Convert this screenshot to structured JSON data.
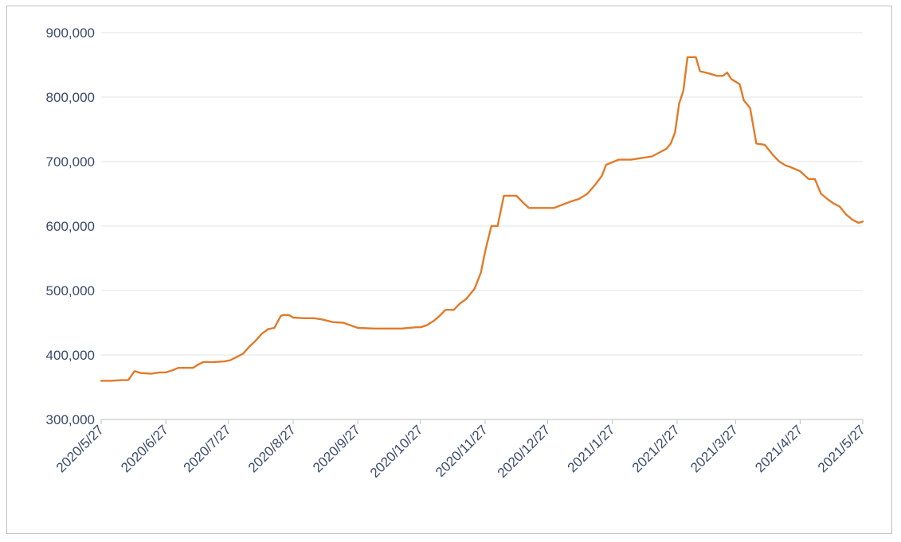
{
  "chart_data": {
    "type": "line",
    "title": "",
    "xlabel": "",
    "ylabel": "",
    "ylim": [
      300000,
      900000
    ],
    "yticks": [
      300000,
      400000,
      500000,
      600000,
      700000,
      800000,
      900000
    ],
    "ytick_labels": [
      "300,000",
      "400,000",
      "500,000",
      "600,000",
      "700,000",
      "800,000",
      "900,000"
    ],
    "x_range": [
      "2020-05-27",
      "2021-05-27"
    ],
    "xtick_labels": [
      "2020/5/27",
      "2020/6/27",
      "2020/7/27",
      "2020/8/27",
      "2020/9/27",
      "2020/10/27",
      "2020/11/27",
      "2020/12/27",
      "2021/1/27",
      "2021/2/27",
      "2021/3/27",
      "2021/4/27",
      "2021/5/27"
    ],
    "grid": true,
    "line_color": "#e07b2a",
    "series": [
      {
        "x": [
          "2020-05-27",
          "2020-06-01",
          "2020-06-06",
          "2020-06-09",
          "2020-06-12",
          "2020-06-15",
          "2020-06-20",
          "2020-06-24",
          "2020-06-27",
          "2020-06-30",
          "2020-07-03",
          "2020-07-05",
          "2020-07-10",
          "2020-07-13",
          "2020-07-15",
          "2020-07-20",
          "2020-07-25",
          "2020-07-28",
          "2020-07-31",
          "2020-08-03",
          "2020-08-06",
          "2020-08-09",
          "2020-08-12",
          "2020-08-15",
          "2020-08-18",
          "2020-08-21",
          "2020-08-22",
          "2020-08-25",
          "2020-08-27",
          "2020-09-01",
          "2020-09-06",
          "2020-09-10",
          "2020-09-15",
          "2020-09-20",
          "2020-09-27",
          "2020-10-05",
          "2020-10-10",
          "2020-10-18",
          "2020-10-25",
          "2020-10-27",
          "2020-10-30",
          "2020-11-02",
          "2020-11-05",
          "2020-11-08",
          "2020-11-12",
          "2020-11-15",
          "2020-11-18",
          "2020-11-22",
          "2020-11-25",
          "2020-11-27",
          "2020-11-30",
          "2020-12-03",
          "2020-12-06",
          "2020-12-09",
          "2020-12-12",
          "2020-12-15",
          "2020-12-18",
          "2020-12-24",
          "2020-12-30",
          "2021-01-03",
          "2021-01-07",
          "2021-01-11",
          "2021-01-15",
          "2021-01-19",
          "2021-01-22",
          "2021-01-24",
          "2021-01-30",
          "2021-02-05",
          "2021-02-15",
          "2021-02-22",
          "2021-02-24",
          "2021-02-26",
          "2021-02-28",
          "2021-03-02",
          "2021-03-04",
          "2021-03-08",
          "2021-03-10",
          "2021-03-14",
          "2021-03-18",
          "2021-03-21",
          "2021-03-23",
          "2021-03-25",
          "2021-03-29",
          "2021-03-31",
          "2021-04-03",
          "2021-04-06",
          "2021-04-10",
          "2021-04-14",
          "2021-04-17",
          "2021-04-20",
          "2021-04-22",
          "2021-04-27",
          "2021-05-01",
          "2021-05-04",
          "2021-05-07",
          "2021-05-10",
          "2021-05-13",
          "2021-05-16",
          "2021-05-19",
          "2021-05-22",
          "2021-05-25",
          "2021-05-27"
        ],
        "values": [
          360000,
          360000,
          361000,
          361000,
          375000,
          372000,
          371000,
          373000,
          373000,
          376000,
          380000,
          380000,
          380000,
          386000,
          389000,
          389000,
          390000,
          392000,
          397000,
          402000,
          413000,
          422000,
          433000,
          440000,
          442000,
          460000,
          462000,
          462000,
          458000,
          457000,
          457000,
          455000,
          451000,
          450000,
          442000,
          441000,
          441000,
          441000,
          443000,
          443000,
          446000,
          452000,
          460000,
          470000,
          470000,
          480000,
          487000,
          503000,
          528000,
          560000,
          600000,
          600000,
          647000,
          647000,
          647000,
          637000,
          628000,
          628000,
          628000,
          633000,
          638000,
          642000,
          650000,
          665000,
          678000,
          695000,
          703000,
          703000,
          708000,
          720000,
          728000,
          745000,
          790000,
          810000,
          862000,
          862000,
          840000,
          837000,
          833000,
          833000,
          838000,
          828000,
          820000,
          795000,
          783000,
          728000,
          726000,
          710000,
          700000,
          694000,
          692000,
          685000,
          673000,
          673000,
          650000,
          642000,
          635000,
          630000,
          618000,
          610000,
          605000,
          607000
        ]
      }
    ]
  }
}
